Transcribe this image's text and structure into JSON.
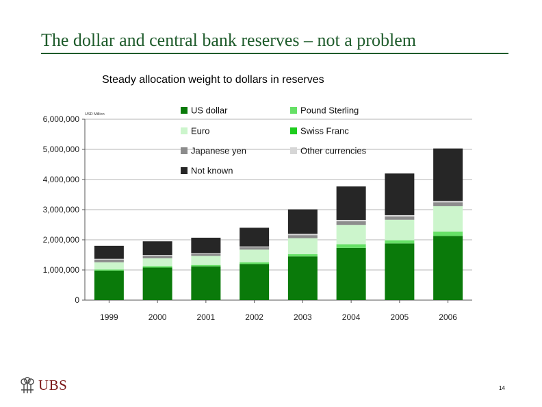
{
  "slide": {
    "title": "The dollar and central bank  reserves – not a problem",
    "page_number": "14",
    "logo_text": "UBS"
  },
  "colors": {
    "title_green": "#1e5b2b",
    "us_dollar": "#0a7a0a",
    "pound_sterling": "#66e066",
    "euro": "#ccf5cc",
    "swiss_franc": "#1ecc1e",
    "japanese_yen": "#8c8c8c",
    "other_currencies": "#d6d6d6",
    "not_known": "#262626",
    "logo_red": "#7a1616"
  },
  "chart_data": {
    "type": "bar",
    "stacked": true,
    "title": "Steady allocation weight to dollars in reserves",
    "unit_label": "USD Million",
    "categories": [
      "1999",
      "2000",
      "2001",
      "2002",
      "2003",
      "2004",
      "2005",
      "2006"
    ],
    "ylim": [
      0,
      6000000
    ],
    "yticks": [
      "0",
      "1,000,000",
      "2,000,000",
      "3,000,000",
      "4,000,000",
      "5,000,000",
      "6,000,000"
    ],
    "grid": true,
    "legend_position": "top",
    "series": [
      {
        "name": "US dollar",
        "color": "#0a7a0a",
        "values": [
          980000,
          1080000,
          1120000,
          1200000,
          1450000,
          1730000,
          1880000,
          2130000
        ]
      },
      {
        "name": "Pound Sterling",
        "color": "#66e066",
        "values": [
          30000,
          40000,
          40000,
          50000,
          70000,
          120000,
          100000,
          140000
        ]
      },
      {
        "name": "Swiss Franc",
        "color": "#1ecc1e",
        "values": [
          5000,
          5000,
          5000,
          5000,
          5000,
          5000,
          5000,
          5000
        ]
      },
      {
        "name": "Euro",
        "color": "#ccf5cc",
        "values": [
          240000,
          260000,
          300000,
          420000,
          530000,
          640000,
          680000,
          840000
        ]
      },
      {
        "name": "Japanese yen",
        "color": "#8c8c8c",
        "values": [
          90000,
          90000,
          70000,
          80000,
          100000,
          120000,
          110000,
          130000
        ]
      },
      {
        "name": "Other currencies",
        "color": "#d6d6d6",
        "values": [
          25000,
          25000,
          25000,
          25000,
          45000,
          45000,
          45000,
          45000
        ]
      },
      {
        "name": "Not known",
        "color": "#262626",
        "values": [
          430000,
          450000,
          510000,
          620000,
          810000,
          1110000,
          1380000,
          1740000
        ]
      }
    ],
    "legend": [
      {
        "name": "US dollar",
        "color": "#0a7a0a"
      },
      {
        "name": "Pound Sterling",
        "color": "#66e066"
      },
      {
        "name": "Euro",
        "color": "#ccf5cc"
      },
      {
        "name": "Swiss Franc",
        "color": "#1ecc1e"
      },
      {
        "name": "Japanese yen",
        "color": "#8c8c8c"
      },
      {
        "name": "Other currencies",
        "color": "#d6d6d6"
      },
      {
        "name": "Not known",
        "color": "#262626"
      }
    ]
  }
}
